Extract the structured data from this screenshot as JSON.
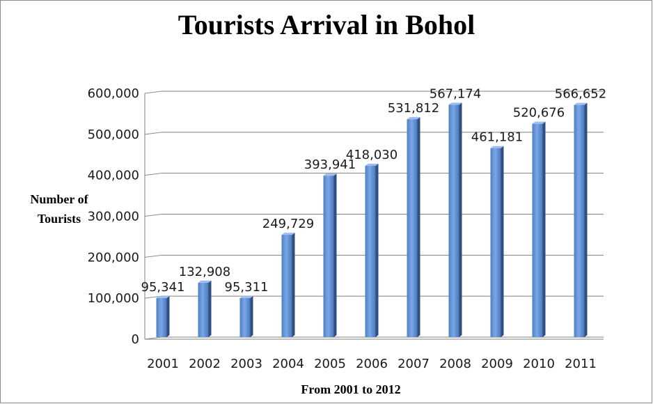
{
  "chart_data": {
    "type": "bar",
    "title": "Tourists Arrival in Bohol",
    "xlabel": "From 2001 to 2012",
    "ylabel": "Number of Tourists",
    "categories": [
      "2001",
      "2002",
      "2003",
      "2004",
      "2005",
      "2006",
      "2007",
      "2008",
      "2009",
      "2010",
      "2011"
    ],
    "values": [
      95341,
      132908,
      95311,
      249729,
      393941,
      418030,
      531812,
      567174,
      461181,
      520676,
      566652
    ],
    "value_labels": [
      "95,341",
      "132,908",
      "95,311",
      "249,729",
      "393,941",
      "418,030",
      "531,812",
      "567,174",
      "461,181",
      "520,676",
      "566,652"
    ],
    "yticks": [
      "0",
      "100,000",
      "200,000",
      "300,000",
      "400,000",
      "500,000",
      "600,000"
    ],
    "ylim": [
      0,
      600000
    ],
    "grid": true,
    "legend": "none",
    "bar_color": "#5b8fd6"
  }
}
